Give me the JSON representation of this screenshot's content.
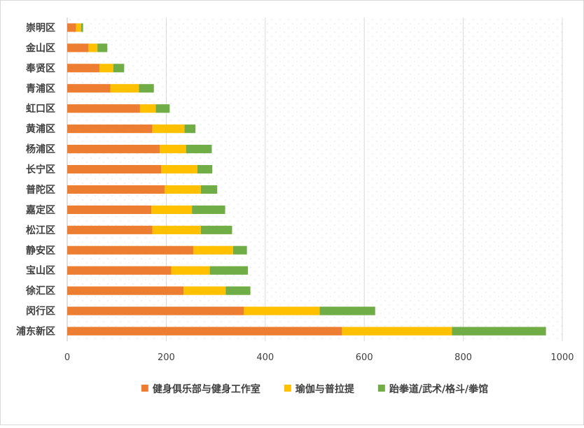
{
  "chart_data": {
    "type": "bar",
    "orientation": "horizontal",
    "stacked": true,
    "title": "",
    "xlabel": "",
    "ylabel": "",
    "xlim": [
      0,
      1000
    ],
    "xticks": [
      "0",
      "200",
      "400",
      "600",
      "800",
      "1000"
    ],
    "grid": true,
    "legend_position": "bottom",
    "categories": [
      "崇明区",
      "金山区",
      "奉贤区",
      "青浦区",
      "虹口区",
      "黄浦区",
      "杨浦区",
      "长宁区",
      "普陀区",
      "嘉定区",
      "松江区",
      "静安区",
      "宝山区",
      "徐汇区",
      "闵行区",
      "浦东新区"
    ],
    "series": [
      {
        "name": "健身俱乐部与健身工作室",
        "color": "#ed7d31",
        "values": [
          18,
          43,
          65,
          87,
          147,
          172,
          187,
          190,
          197,
          170,
          172,
          255,
          210,
          235,
          357,
          555
        ]
      },
      {
        "name": "瑜伽与普拉提",
        "color": "#ffc000",
        "values": [
          10,
          18,
          28,
          58,
          32,
          65,
          53,
          73,
          73,
          82,
          98,
          80,
          78,
          85,
          153,
          222
        ]
      },
      {
        "name": "跆拳道/武术/格斗/拳馆",
        "color": "#70ad47",
        "values": [
          4,
          20,
          22,
          30,
          28,
          22,
          52,
          30,
          33,
          67,
          63,
          28,
          77,
          50,
          112,
          190
        ]
      }
    ]
  }
}
